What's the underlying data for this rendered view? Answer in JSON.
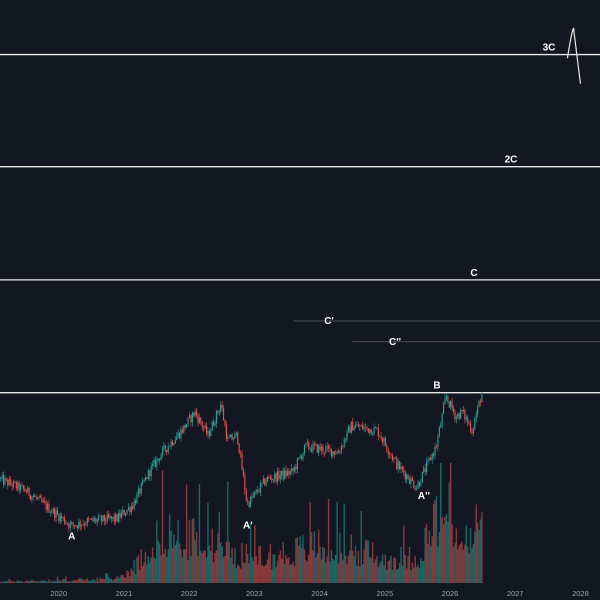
{
  "chart_data": {
    "type": "candlestick",
    "background": "#131722",
    "colors": {
      "up": "#26a69a",
      "down": "#ef5350",
      "level_line": "#e8e8e8",
      "sub_level_line": "#5d606b",
      "label": "#ffffff",
      "tick_label": "#9aa0ad"
    },
    "x_axis": {
      "tick_labels": [
        "2020",
        "2021",
        "2022",
        "2023",
        "2024",
        "2025",
        "2026",
        "2027",
        "2028"
      ],
      "tick_years": [
        2020,
        2021,
        2022,
        2023,
        2024,
        2025,
        2026,
        2027,
        2028
      ],
      "range": [
        2019.1,
        2028.3
      ]
    },
    "price_scale": {
      "type": "log",
      "range": [
        0.26,
        50
      ]
    },
    "horizontal_levels": [
      {
        "name": "3C",
        "label": "3C",
        "value": 31,
        "style": "major"
      },
      {
        "name": "2C",
        "label": "2C",
        "value": 11.6,
        "style": "major"
      },
      {
        "name": "C",
        "label": "C",
        "value": 4.3,
        "style": "major"
      },
      {
        "name": "B",
        "label": "B",
        "value": 1.6,
        "style": "major"
      },
      {
        "name": "C-prime",
        "label": "C'",
        "value": 3.0,
        "style": "minor",
        "start_year": 2023.6
      },
      {
        "name": "C-double-prime",
        "label": "C''",
        "value": 2.5,
        "style": "minor",
        "start_year": 2024.5
      }
    ],
    "swing_points": [
      {
        "name": "A",
        "label": "A",
        "year": 2020.2,
        "value": 0.5
      },
      {
        "name": "A-prime",
        "label": "A'",
        "year": 2022.9,
        "value": 0.55
      },
      {
        "name": "A-double-prime",
        "label": "A''",
        "year": 2025.6,
        "value": 0.7
      }
    ],
    "price_anchors": [
      [
        2019.1,
        0.75
      ],
      [
        2019.5,
        0.68
      ],
      [
        2019.9,
        0.57
      ],
      [
        2020.2,
        0.5
      ],
      [
        2020.5,
        0.52
      ],
      [
        2020.9,
        0.53
      ],
      [
        2021.15,
        0.6
      ],
      [
        2021.4,
        0.8
      ],
      [
        2021.6,
        0.95
      ],
      [
        2021.9,
        1.15
      ],
      [
        2022.1,
        1.35
      ],
      [
        2022.3,
        1.1
      ],
      [
        2022.5,
        1.45
      ],
      [
        2022.6,
        1.05
      ],
      [
        2022.75,
        1.1
      ],
      [
        2022.9,
        0.6
      ],
      [
        2023.2,
        0.75
      ],
      [
        2023.6,
        0.8
      ],
      [
        2023.8,
        1.0
      ],
      [
        2024.3,
        0.95
      ],
      [
        2024.5,
        1.2
      ],
      [
        2024.9,
        1.15
      ],
      [
        2025.2,
        0.85
      ],
      [
        2025.5,
        0.7
      ],
      [
        2025.8,
        1.0
      ],
      [
        2025.95,
        1.55
      ],
      [
        2026.1,
        1.3
      ],
      [
        2026.2,
        1.35
      ],
      [
        2026.35,
        1.15
      ],
      [
        2026.5,
        1.6
      ]
    ],
    "volume_profile": [
      [
        2019.1,
        2
      ],
      [
        2019.8,
        3
      ],
      [
        2020.5,
        4
      ],
      [
        2020.9,
        6
      ],
      [
        2021.2,
        22
      ],
      [
        2021.4,
        45
      ],
      [
        2021.6,
        60
      ],
      [
        2021.9,
        50
      ],
      [
        2022.1,
        55
      ],
      [
        2022.3,
        40
      ],
      [
        2022.5,
        65
      ],
      [
        2022.7,
        35
      ],
      [
        2023.0,
        30
      ],
      [
        2023.5,
        35
      ],
      [
        2024.0,
        45
      ],
      [
        2024.5,
        40
      ],
      [
        2025.0,
        30
      ],
      [
        2025.5,
        30
      ],
      [
        2025.8,
        75
      ],
      [
        2025.95,
        90
      ],
      [
        2026.1,
        55
      ],
      [
        2026.3,
        45
      ],
      [
        2026.5,
        90
      ]
    ],
    "volume_max": 100,
    "projection": {
      "start_year": 2027.8,
      "start_value": 30,
      "peak_year": 2027.9,
      "peak_value": 38,
      "end_year": 2028.0,
      "end_value": 24
    }
  }
}
